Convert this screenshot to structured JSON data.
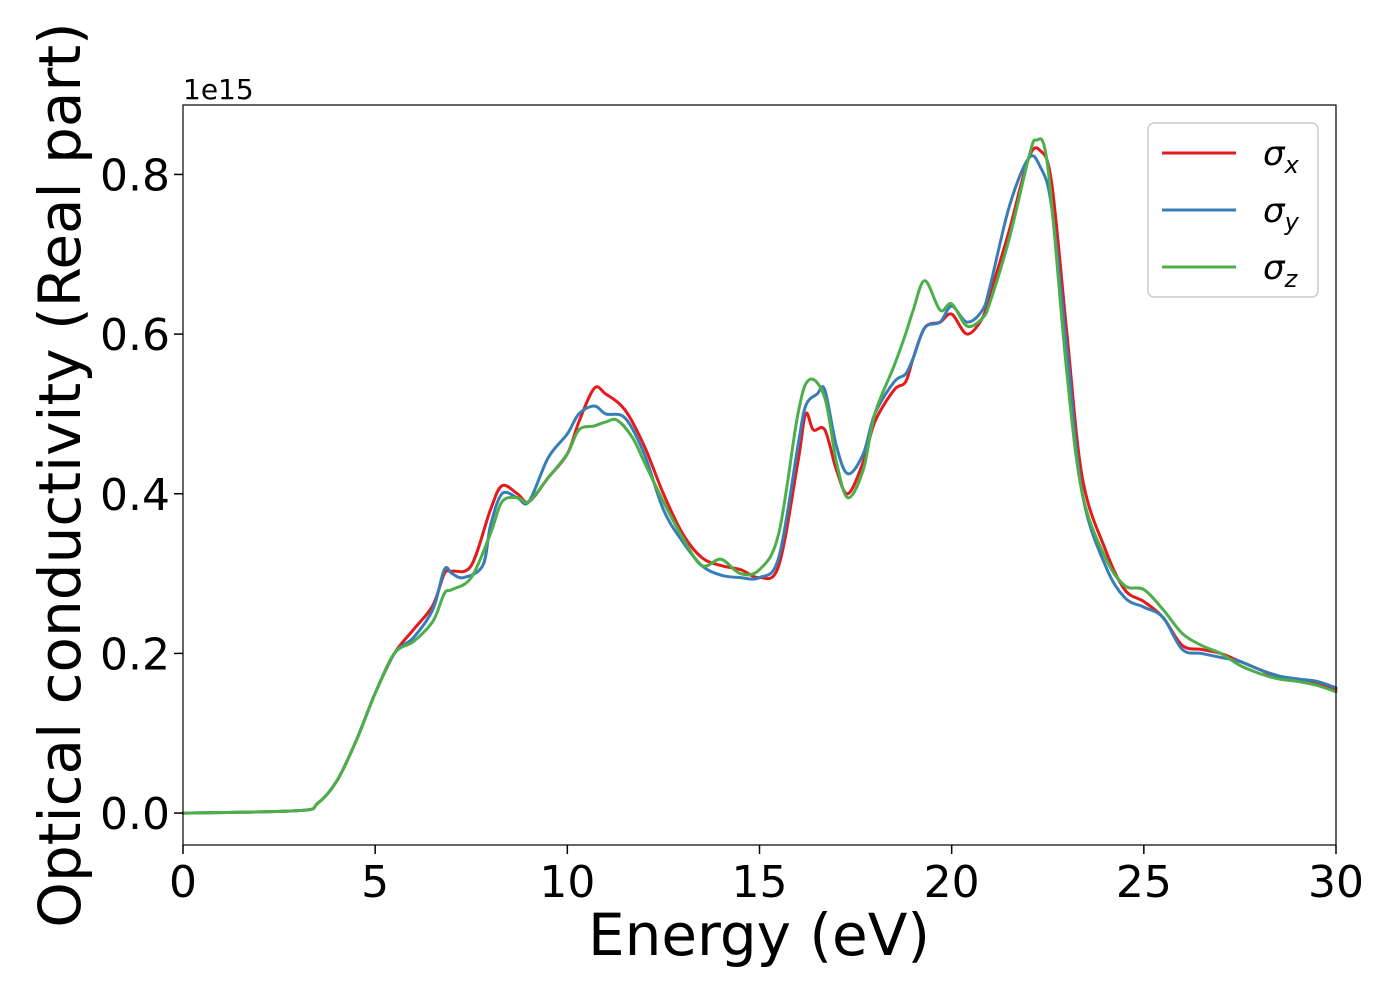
{
  "chart_data": {
    "type": "line",
    "xlabel": "Energy (eV)",
    "ylabel": "Optical conductivity (Real part)",
    "y_offset_label": "1e15",
    "xlim": [
      0,
      30
    ],
    "ylim": [
      -0.04,
      0.887
    ],
    "x_ticks": [
      0,
      5,
      10,
      15,
      20,
      25,
      30
    ],
    "x_tick_labels": [
      "0",
      "5",
      "10",
      "15",
      "20",
      "25",
      "30"
    ],
    "y_ticks": [
      0.0,
      0.2,
      0.4,
      0.6,
      0.8
    ],
    "y_tick_labels": [
      "0.0",
      "0.2",
      "0.4",
      "0.6",
      "0.8"
    ],
    "grid": false,
    "legend_position": "top-right",
    "series": [
      {
        "name": "σx",
        "symbol": "σ",
        "subscript": "x",
        "color": "#e41a1c",
        "points": [
          [
            0,
            0
          ],
          [
            3,
            0.003
          ],
          [
            3.5,
            0.012
          ],
          [
            4,
            0.04
          ],
          [
            4.5,
            0.09
          ],
          [
            5,
            0.15
          ],
          [
            5.5,
            0.2
          ],
          [
            6,
            0.23
          ],
          [
            6.5,
            0.26
          ],
          [
            6.8,
            0.3
          ],
          [
            7,
            0.303
          ],
          [
            7.5,
            0.31
          ],
          [
            8,
            0.38
          ],
          [
            8.3,
            0.41
          ],
          [
            8.7,
            0.4
          ],
          [
            9,
            0.39
          ],
          [
            9.5,
            0.42
          ],
          [
            10,
            0.45
          ],
          [
            10.3,
            0.49
          ],
          [
            10.7,
            0.532
          ],
          [
            11,
            0.525
          ],
          [
            11.5,
            0.505
          ],
          [
            12,
            0.46
          ],
          [
            12.5,
            0.4
          ],
          [
            13,
            0.35
          ],
          [
            13.5,
            0.32
          ],
          [
            14,
            0.31
          ],
          [
            14.5,
            0.305
          ],
          [
            15,
            0.295
          ],
          [
            15.5,
            0.31
          ],
          [
            16,
            0.44
          ],
          [
            16.2,
            0.5
          ],
          [
            16.4,
            0.48
          ],
          [
            16.7,
            0.48
          ],
          [
            17,
            0.43
          ],
          [
            17.3,
            0.4
          ],
          [
            17.7,
            0.44
          ],
          [
            18,
            0.49
          ],
          [
            18.5,
            0.53
          ],
          [
            18.8,
            0.54
          ],
          [
            19,
            0.57
          ],
          [
            19.3,
            0.608
          ],
          [
            19.7,
            0.615
          ],
          [
            20,
            0.625
          ],
          [
            20.4,
            0.6
          ],
          [
            20.8,
            0.62
          ],
          [
            21,
            0.65
          ],
          [
            21.5,
            0.73
          ],
          [
            22,
            0.82
          ],
          [
            22.3,
            0.83
          ],
          [
            22.6,
            0.79
          ],
          [
            23,
            0.6
          ],
          [
            23.4,
            0.42
          ],
          [
            24,
            0.33
          ],
          [
            24.5,
            0.28
          ],
          [
            25,
            0.265
          ],
          [
            25.5,
            0.245
          ],
          [
            26,
            0.21
          ],
          [
            26.5,
            0.205
          ],
          [
            27,
            0.2
          ],
          [
            27.5,
            0.19
          ],
          [
            28,
            0.18
          ],
          [
            28.5,
            0.17
          ],
          [
            29,
            0.168
          ],
          [
            29.5,
            0.162
          ],
          [
            30,
            0.155
          ]
        ]
      },
      {
        "name": "σy",
        "symbol": "σ",
        "subscript": "y",
        "color": "#377eb8",
        "points": [
          [
            0,
            0
          ],
          [
            3,
            0.003
          ],
          [
            3.5,
            0.012
          ],
          [
            4,
            0.04
          ],
          [
            4.5,
            0.09
          ],
          [
            5,
            0.15
          ],
          [
            5.5,
            0.2
          ],
          [
            6,
            0.22
          ],
          [
            6.5,
            0.255
          ],
          [
            6.8,
            0.305
          ],
          [
            7,
            0.3
          ],
          [
            7.3,
            0.295
          ],
          [
            7.8,
            0.31
          ],
          [
            8,
            0.36
          ],
          [
            8.3,
            0.4
          ],
          [
            8.7,
            0.395
          ],
          [
            9,
            0.39
          ],
          [
            9.5,
            0.445
          ],
          [
            10,
            0.475
          ],
          [
            10.3,
            0.5
          ],
          [
            10.7,
            0.51
          ],
          [
            11,
            0.5
          ],
          [
            11.5,
            0.495
          ],
          [
            12,
            0.45
          ],
          [
            12.5,
            0.38
          ],
          [
            13,
            0.34
          ],
          [
            13.5,
            0.31
          ],
          [
            14,
            0.298
          ],
          [
            14.5,
            0.295
          ],
          [
            15,
            0.295
          ],
          [
            15.5,
            0.32
          ],
          [
            16,
            0.46
          ],
          [
            16.2,
            0.51
          ],
          [
            16.5,
            0.525
          ],
          [
            16.7,
            0.53
          ],
          [
            17,
            0.46
          ],
          [
            17.3,
            0.425
          ],
          [
            17.7,
            0.45
          ],
          [
            18,
            0.5
          ],
          [
            18.5,
            0.54
          ],
          [
            18.8,
            0.55
          ],
          [
            19,
            0.57
          ],
          [
            19.3,
            0.608
          ],
          [
            19.7,
            0.615
          ],
          [
            20,
            0.635
          ],
          [
            20.4,
            0.615
          ],
          [
            20.8,
            0.63
          ],
          [
            21,
            0.66
          ],
          [
            21.5,
            0.76
          ],
          [
            22,
            0.82
          ],
          [
            22.3,
            0.81
          ],
          [
            22.6,
            0.76
          ],
          [
            23,
            0.58
          ],
          [
            23.4,
            0.4
          ],
          [
            24,
            0.31
          ],
          [
            24.5,
            0.27
          ],
          [
            25,
            0.258
          ],
          [
            25.5,
            0.245
          ],
          [
            26,
            0.205
          ],
          [
            26.5,
            0.2
          ],
          [
            27,
            0.195
          ],
          [
            27.5,
            0.19
          ],
          [
            28,
            0.18
          ],
          [
            28.5,
            0.172
          ],
          [
            29,
            0.168
          ],
          [
            29.5,
            0.165
          ],
          [
            30,
            0.157
          ]
        ]
      },
      {
        "name": "σz",
        "symbol": "σ",
        "subscript": "z",
        "color": "#4daf4a",
        "points": [
          [
            0,
            0
          ],
          [
            3,
            0.003
          ],
          [
            3.5,
            0.012
          ],
          [
            4,
            0.04
          ],
          [
            4.5,
            0.09
          ],
          [
            5,
            0.15
          ],
          [
            5.5,
            0.2
          ],
          [
            6,
            0.215
          ],
          [
            6.5,
            0.24
          ],
          [
            6.8,
            0.275
          ],
          [
            7,
            0.28
          ],
          [
            7.5,
            0.295
          ],
          [
            8,
            0.35
          ],
          [
            8.3,
            0.39
          ],
          [
            8.7,
            0.395
          ],
          [
            9,
            0.39
          ],
          [
            9.5,
            0.42
          ],
          [
            10,
            0.45
          ],
          [
            10.3,
            0.48
          ],
          [
            10.7,
            0.485
          ],
          [
            11,
            0.49
          ],
          [
            11.3,
            0.492
          ],
          [
            11.7,
            0.47
          ],
          [
            12,
            0.44
          ],
          [
            12.5,
            0.39
          ],
          [
            13,
            0.345
          ],
          [
            13.5,
            0.31
          ],
          [
            14,
            0.318
          ],
          [
            14.5,
            0.3
          ],
          [
            15,
            0.305
          ],
          [
            15.5,
            0.35
          ],
          [
            16,
            0.5
          ],
          [
            16.3,
            0.543
          ],
          [
            16.7,
            0.52
          ],
          [
            17,
            0.44
          ],
          [
            17.3,
            0.395
          ],
          [
            17.7,
            0.43
          ],
          [
            18,
            0.5
          ],
          [
            18.5,
            0.56
          ],
          [
            18.8,
            0.6
          ],
          [
            19,
            0.63
          ],
          [
            19.3,
            0.667
          ],
          [
            19.7,
            0.63
          ],
          [
            20,
            0.638
          ],
          [
            20.4,
            0.61
          ],
          [
            20.8,
            0.62
          ],
          [
            21,
            0.64
          ],
          [
            21.5,
            0.72
          ],
          [
            22,
            0.82
          ],
          [
            22.2,
            0.843
          ],
          [
            22.5,
            0.81
          ],
          [
            23,
            0.55
          ],
          [
            23.4,
            0.4
          ],
          [
            24,
            0.32
          ],
          [
            24.5,
            0.285
          ],
          [
            25,
            0.28
          ],
          [
            25.5,
            0.255
          ],
          [
            26,
            0.225
          ],
          [
            26.5,
            0.21
          ],
          [
            27,
            0.2
          ],
          [
            27.5,
            0.185
          ],
          [
            28,
            0.175
          ],
          [
            28.5,
            0.168
          ],
          [
            29,
            0.165
          ],
          [
            29.5,
            0.16
          ],
          [
            30,
            0.152
          ]
        ]
      }
    ]
  }
}
